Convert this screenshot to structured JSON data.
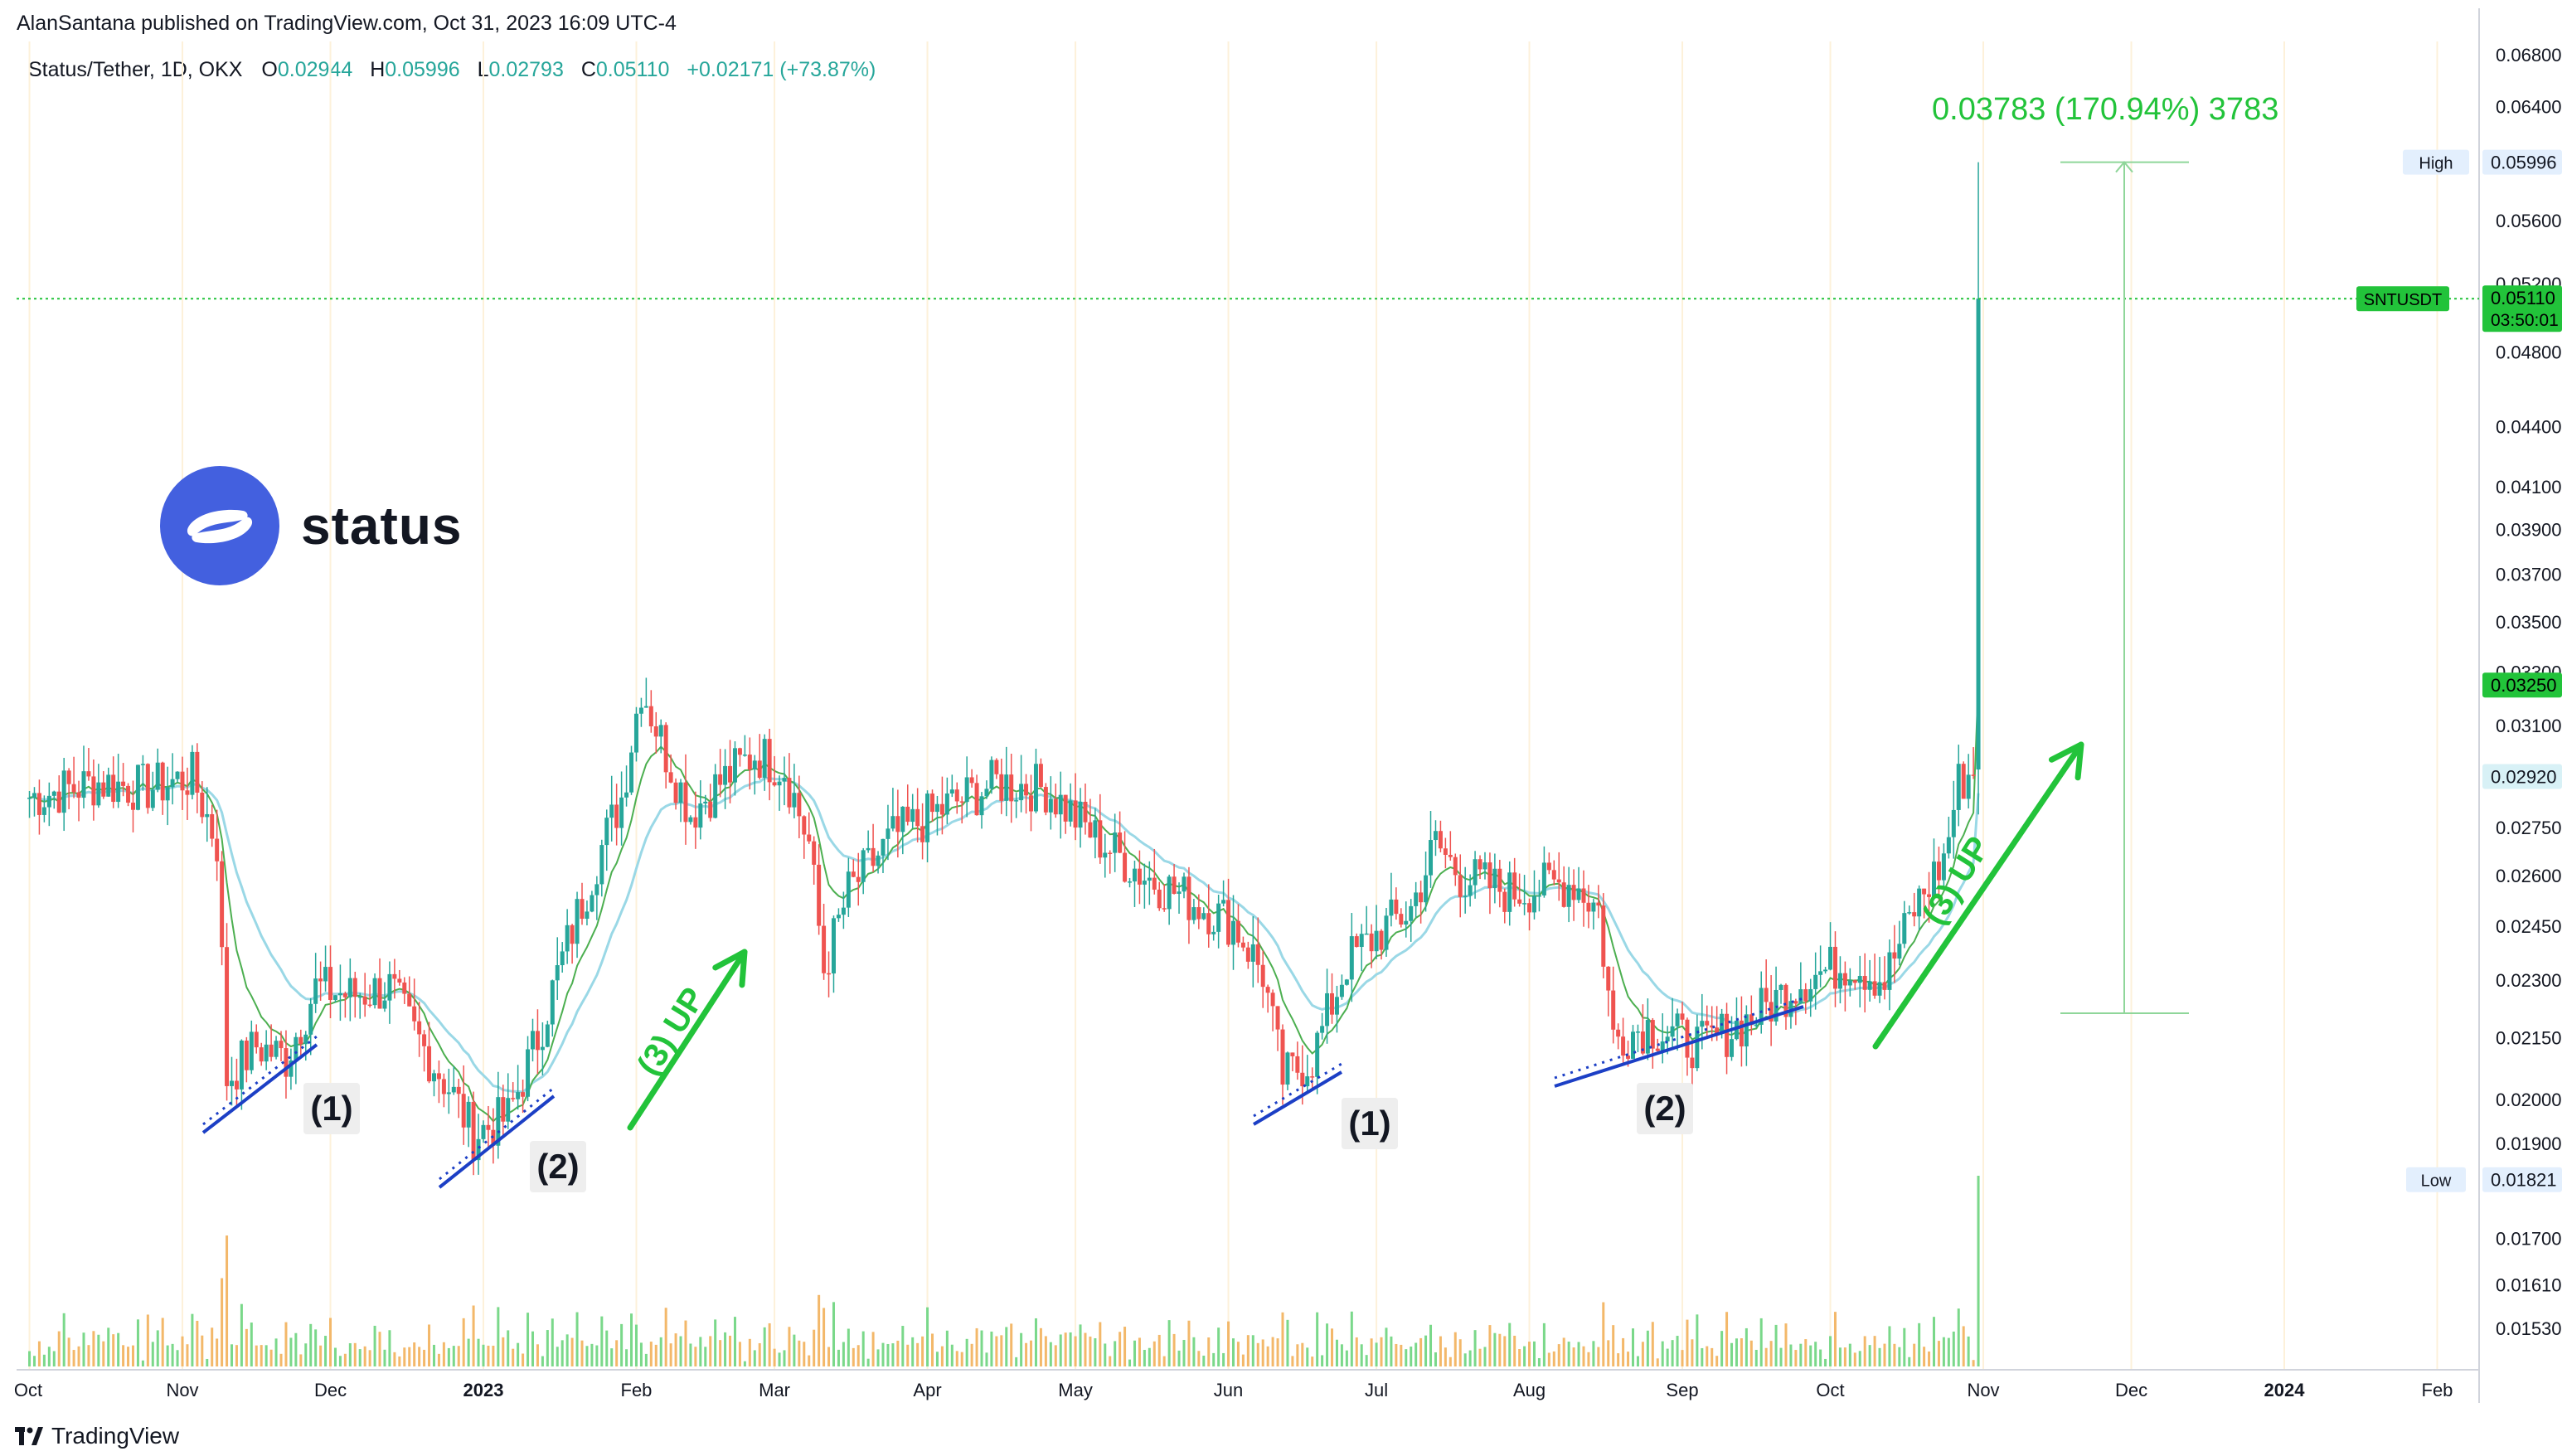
{
  "header": {
    "publisher": "AlanSantana published on TradingView.com, Oct 31, 2023 16:09 UTC-4",
    "symbol": "Status/Tether, 1D, OKX",
    "ohlc": [
      {
        "label": "O",
        "value": "0.02944"
      },
      {
        "label": "H",
        "value": "0.05996"
      },
      {
        "label": "L",
        "value": "0.02793"
      },
      {
        "label": "C",
        "value": "0.05110"
      }
    ],
    "change": "+0.02171 (+73.87%)"
  },
  "logo": {
    "wordmark": "status",
    "icon": "status-logo-icon"
  },
  "footer": {
    "brand": "TradingView",
    "icon": "tradingview-logo-icon"
  },
  "colors": {
    "up": "#26a69a",
    "down": "#ef5350",
    "annotation_green": "#22c33a",
    "trendline_blue": "#1c3fc5",
    "ema_fast": "#4caf50",
    "ema_slow": "#9ad8e6",
    "month_grid": "#fdf1da",
    "price_line": "#22c33a"
  },
  "annotations": {
    "measure": "0.03783 (170.94%) 3783",
    "wave_labels": [
      "(1)",
      "(2)",
      "(1)",
      "(2)"
    ],
    "up_labels": [
      "(3) UP",
      "(3) UP"
    ]
  },
  "price_tags": {
    "symbol": "SNTUSDT",
    "last": "0.05110",
    "countdown": "03:50:01",
    "high_label": "High",
    "high": "0.05996",
    "low_label": "Low",
    "low": "0.01821",
    "level1": "0.03250",
    "level2": "0.02920"
  },
  "chart_data": {
    "type": "candlestick",
    "scale": "log",
    "x_labels": [
      "Oct",
      "Nov",
      "Dec",
      "2023",
      "Feb",
      "Mar",
      "Apr",
      "May",
      "Jun",
      "Jul",
      "Aug",
      "Sep",
      "Oct",
      "Nov",
      "Dec",
      "2024",
      "Feb"
    ],
    "y_ticks": [
      "0.06800",
      "0.06400",
      "0.06000",
      "0.05600",
      "0.05200",
      "0.04800",
      "0.04400",
      "0.04100",
      "0.03900",
      "0.03700",
      "0.03500",
      "0.03300",
      "0.03100",
      "0.02750",
      "0.02600",
      "0.02450",
      "0.02300",
      "0.02150",
      "0.02000",
      "0.01900",
      "0.01700",
      "0.01610",
      "0.01530"
    ],
    "y_range": [
      0.0145,
      0.069
    ],
    "close_series": [
      {
        "date": "2022-10-01",
        "close": 0.0285
      },
      {
        "date": "2022-10-15",
        "close": 0.029
      },
      {
        "date": "2022-10-25",
        "close": 0.0288
      },
      {
        "date": "2022-11-03",
        "close": 0.0292
      },
      {
        "date": "2022-11-08",
        "close": 0.027
      },
      {
        "date": "2022-11-10",
        "close": 0.0205
      },
      {
        "date": "2022-11-16",
        "close": 0.0213
      },
      {
        "date": "2022-11-22",
        "close": 0.021
      },
      {
        "date": "2022-11-28",
        "close": 0.0228
      },
      {
        "date": "2022-12-05",
        "close": 0.0226
      },
      {
        "date": "2022-12-13",
        "close": 0.0228
      },
      {
        "date": "2022-12-18",
        "close": 0.0216
      },
      {
        "date": "2022-12-25",
        "close": 0.0203
      },
      {
        "date": "2022-12-30",
        "close": 0.0192
      },
      {
        "date": "2023-01-06",
        "close": 0.0196
      },
      {
        "date": "2023-01-12",
        "close": 0.0215
      },
      {
        "date": "2023-01-18",
        "close": 0.024
      },
      {
        "date": "2023-01-24",
        "close": 0.0265
      },
      {
        "date": "2023-01-29",
        "close": 0.0285
      },
      {
        "date": "2023-02-02",
        "close": 0.0325
      },
      {
        "date": "2023-02-07",
        "close": 0.03
      },
      {
        "date": "2023-02-12",
        "close": 0.028
      },
      {
        "date": "2023-02-18",
        "close": 0.029
      },
      {
        "date": "2023-02-25",
        "close": 0.03
      },
      {
        "date": "2023-03-03",
        "close": 0.0295
      },
      {
        "date": "2023-03-08",
        "close": 0.027
      },
      {
        "date": "2023-03-11",
        "close": 0.0233
      },
      {
        "date": "2023-03-16",
        "close": 0.0255
      },
      {
        "date": "2023-03-25",
        "close": 0.0272
      },
      {
        "date": "2023-04-05",
        "close": 0.0282
      },
      {
        "date": "2023-04-15",
        "close": 0.029
      },
      {
        "date": "2023-04-25",
        "close": 0.0288
      },
      {
        "date": "2023-05-05",
        "close": 0.0272
      },
      {
        "date": "2023-05-15",
        "close": 0.026
      },
      {
        "date": "2023-05-25",
        "close": 0.0252
      },
      {
        "date": "2023-06-02",
        "close": 0.0246
      },
      {
        "date": "2023-06-08",
        "close": 0.0232
      },
      {
        "date": "2023-06-12",
        "close": 0.0205
      },
      {
        "date": "2023-06-18",
        "close": 0.021
      },
      {
        "date": "2023-06-25",
        "close": 0.0235
      },
      {
        "date": "2023-07-03",
        "close": 0.0245
      },
      {
        "date": "2023-07-08",
        "close": 0.025
      },
      {
        "date": "2023-07-13",
        "close": 0.027
      },
      {
        "date": "2023-07-18",
        "close": 0.026
      },
      {
        "date": "2023-07-28",
        "close": 0.0255
      },
      {
        "date": "2023-08-10",
        "close": 0.0258
      },
      {
        "date": "2023-08-15",
        "close": 0.025
      },
      {
        "date": "2023-08-18",
        "close": 0.0215
      },
      {
        "date": "2023-08-25",
        "close": 0.0218
      },
      {
        "date": "2023-09-05",
        "close": 0.0213
      },
      {
        "date": "2023-09-15",
        "close": 0.022
      },
      {
        "date": "2023-09-25",
        "close": 0.023
      },
      {
        "date": "2023-10-05",
        "close": 0.0235
      },
      {
        "date": "2023-10-12",
        "close": 0.023
      },
      {
        "date": "2023-10-18",
        "close": 0.025
      },
      {
        "date": "2023-10-24",
        "close": 0.0265
      },
      {
        "date": "2023-10-27",
        "close": 0.029
      },
      {
        "date": "2023-10-30",
        "close": 0.0294
      },
      {
        "date": "2023-10-31",
        "close": 0.0511
      }
    ]
  }
}
